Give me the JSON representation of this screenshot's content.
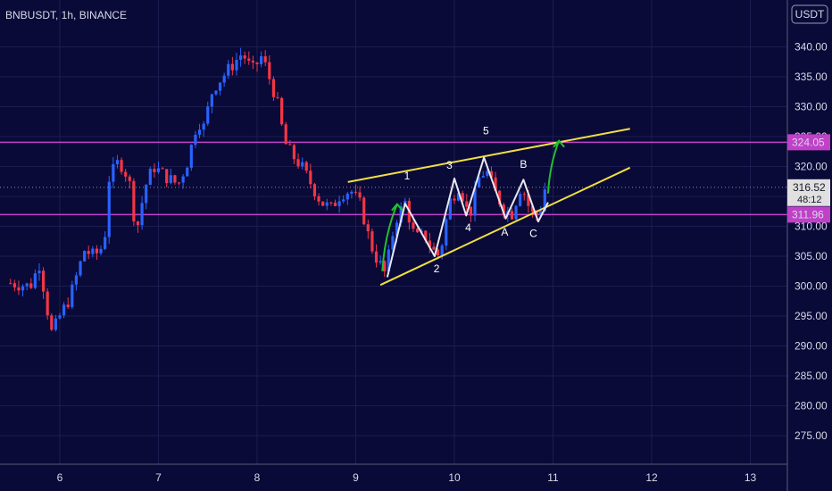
{
  "header": {
    "symbol_label": "BNBUSDT, 1h, BINANCE"
  },
  "currency_badge": "USDT",
  "colors": {
    "background": "#0a0a38",
    "up_candle": "#2962ff",
    "down_candle": "#f23645",
    "support_resistance": "#c040c8",
    "trendline": "#f0e040",
    "elliott_path": "#e8e8f0",
    "arrow": "#22c030",
    "current_price_tag": "#e0e0e0"
  },
  "chart_data": {
    "type": "candlestick",
    "title": "BNBUSDT, 1h, BINANCE",
    "ylim": [
      270,
      344
    ],
    "xlim": [
      5.5,
      13.3
    ],
    "y_ticks": [
      "340.00",
      "335.00",
      "330.00",
      "325.00",
      "320.00",
      "315.00",
      "310.00",
      "305.00",
      "300.00",
      "295.00",
      "290.00",
      "285.00",
      "280.00",
      "275.00"
    ],
    "y_tick_values": [
      340,
      335,
      330,
      325,
      320,
      315,
      310,
      305,
      300,
      295,
      290,
      285,
      280,
      275
    ],
    "x_ticks": [
      "6",
      "7",
      "8",
      "9",
      "10",
      "11",
      "12",
      "13"
    ],
    "x_tick_values": [
      6,
      7,
      8,
      9,
      10,
      11,
      12,
      13
    ],
    "price_trend": [
      [
        5.5,
        300.5
      ],
      [
        5.7,
        300.0
      ],
      [
        5.8,
        304.0
      ],
      [
        5.85,
        298.0
      ],
      [
        5.92,
        292.0
      ],
      [
        6.0,
        295.0
      ],
      [
        6.1,
        298.0
      ],
      [
        6.25,
        306.0
      ],
      [
        6.35,
        305.0
      ],
      [
        6.45,
        307.0
      ],
      [
        6.5,
        318.0
      ],
      [
        6.6,
        321.0
      ],
      [
        6.7,
        318.0
      ],
      [
        6.75,
        312.0
      ],
      [
        6.8,
        310.0
      ],
      [
        6.85,
        316.0
      ],
      [
        6.95,
        320.0
      ],
      [
        7.1,
        318.0
      ],
      [
        7.2,
        317.0
      ],
      [
        7.3,
        321.0
      ],
      [
        7.4,
        328.0
      ],
      [
        7.45,
        326.0
      ],
      [
        7.55,
        333.0
      ],
      [
        7.65,
        335.0
      ],
      [
        7.75,
        337.0
      ],
      [
        7.85,
        339.0
      ],
      [
        7.95,
        336.0
      ],
      [
        8.05,
        338.5
      ],
      [
        8.1,
        336.0
      ],
      [
        8.2,
        331.0
      ],
      [
        8.28,
        324.0
      ],
      [
        8.35,
        322.0
      ],
      [
        8.45,
        320.0
      ],
      [
        8.55,
        317.0
      ],
      [
        8.65,
        314.0
      ],
      [
        8.75,
        313.0
      ],
      [
        8.85,
        315.5
      ],
      [
        8.95,
        316.0
      ],
      [
        9.05,
        313.5
      ],
      [
        9.15,
        307.0
      ],
      [
        9.2,
        305.0
      ],
      [
        9.3,
        302.0
      ],
      [
        9.4,
        311.0
      ],
      [
        9.5,
        314.0
      ],
      [
        9.6,
        308.0
      ],
      [
        9.7,
        308.5
      ],
      [
        9.78,
        306.0
      ],
      [
        9.85,
        305.0
      ],
      [
        9.95,
        314.0
      ],
      [
        10.05,
        317.0
      ],
      [
        10.15,
        311.5
      ],
      [
        10.25,
        318.0
      ],
      [
        10.32,
        319.5
      ],
      [
        10.4,
        316.0
      ],
      [
        10.5,
        313.0
      ],
      [
        10.58,
        312.0
      ],
      [
        10.68,
        317.0
      ],
      [
        10.78,
        312.0
      ],
      [
        10.86,
        312.0
      ],
      [
        10.92,
        316.5
      ]
    ],
    "horizontal_levels": [
      {
        "value": 324.05,
        "label": "324.05"
      },
      {
        "value": 311.96,
        "label": "311.96"
      }
    ],
    "current_price": {
      "value": 316.52,
      "label": "316.52",
      "countdown": "48:12"
    },
    "trendlines": [
      {
        "from": [
          8.92,
          317.4
        ],
        "to": [
          11.78,
          326.3
        ]
      },
      {
        "from": [
          9.25,
          300.2
        ],
        "to": [
          11.78,
          319.8
        ]
      }
    ],
    "elliott_path": [
      [
        9.32,
        301.5
      ],
      [
        9.5,
        313.8
      ],
      [
        9.8,
        305.0
      ],
      [
        10.0,
        318.0
      ],
      [
        10.12,
        311.8
      ],
      [
        10.3,
        321.5
      ],
      [
        10.52,
        311.3
      ],
      [
        10.7,
        317.8
      ],
      [
        10.85,
        310.8
      ],
      [
        10.95,
        314.0
      ]
    ],
    "wave_labels": [
      {
        "text": "1",
        "x": 9.52,
        "y": 317.8
      },
      {
        "text": "2",
        "x": 9.82,
        "y": 302.3
      },
      {
        "text": "3",
        "x": 9.95,
        "y": 319.6
      },
      {
        "text": "4",
        "x": 10.14,
        "y": 309.2
      },
      {
        "text": "5",
        "x": 10.32,
        "y": 325.4
      },
      {
        "text": "A",
        "x": 10.51,
        "y": 308.4
      },
      {
        "text": "B",
        "x": 10.7,
        "y": 319.8
      },
      {
        "text": "C",
        "x": 10.8,
        "y": 308.2
      }
    ],
    "arrows": [
      {
        "from": [
          9.27,
          302.5
        ],
        "to": [
          9.42,
          313.7
        ]
      },
      {
        "from": [
          10.95,
          315.5
        ],
        "to": [
          11.06,
          324.3
        ]
      }
    ]
  }
}
